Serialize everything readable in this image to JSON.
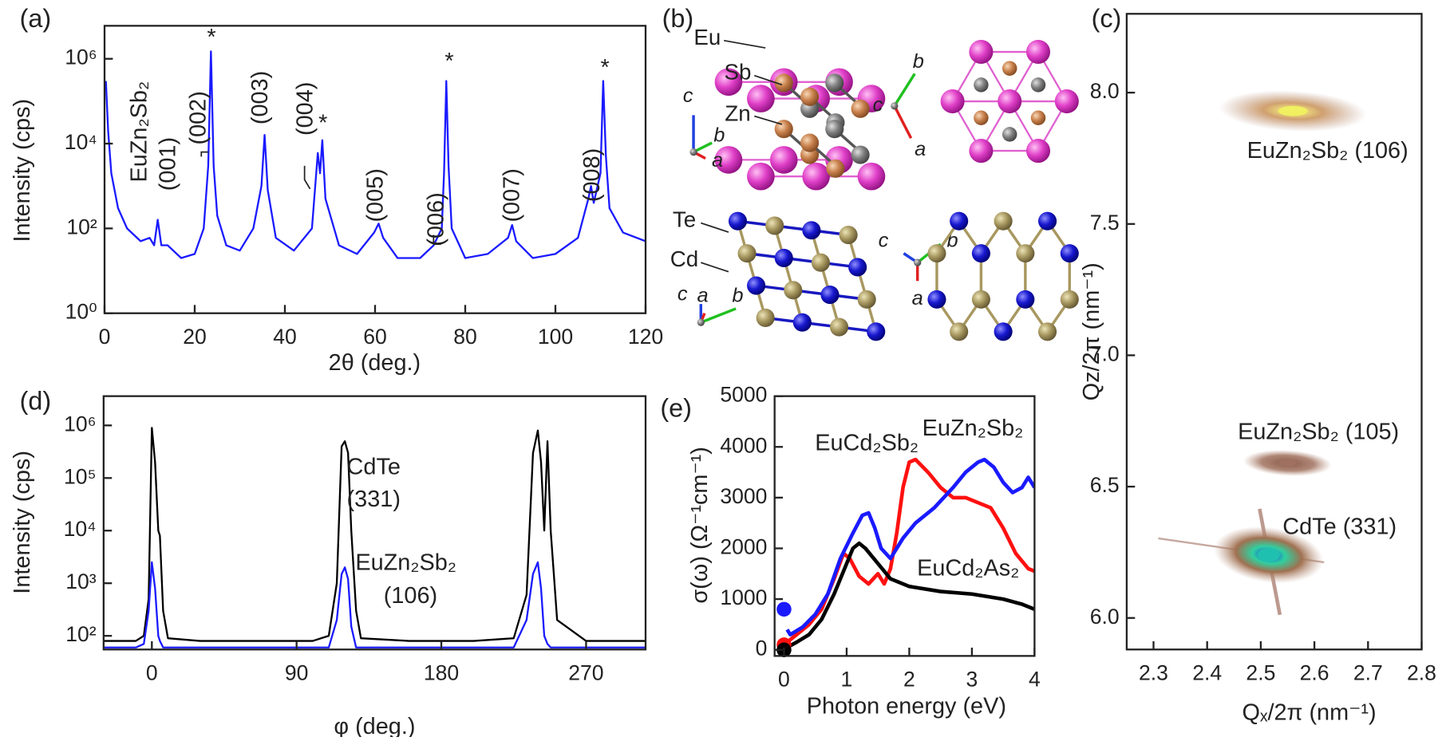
{
  "chart_data": [
    {
      "type": "line",
      "panel_label": "(a)",
      "x_label": "2θ (deg.)",
      "y_label": "Intensity (cps)",
      "log_y": true,
      "xlim": [
        0,
        120
      ],
      "xticks": [
        0,
        20,
        40,
        60,
        80,
        100,
        120
      ],
      "ylim": [
        1,
        6000000
      ],
      "yticks": [
        {
          "value": 1,
          "label": "10⁰"
        },
        {
          "value": 100,
          "label": "10²"
        },
        {
          "value": 10000,
          "label": "10⁴"
        },
        {
          "value": 1000000,
          "label": "10⁶"
        }
      ],
      "series": [
        {
          "color": "#1a1aff",
          "x": [
            0.3,
            0.8,
            1.5,
            3,
            5,
            8,
            10,
            11,
            11.8,
            12.6,
            14,
            17,
            20,
            22,
            23,
            23.6,
            24.2,
            25,
            27,
            30,
            33,
            34.8,
            35.5,
            36.2,
            38,
            42,
            46,
            47.3,
            47.8,
            48.3,
            49,
            52,
            56,
            59.8,
            60.8,
            61.8,
            65,
            70,
            73,
            74.8,
            75.3,
            75.8,
            76.3,
            77,
            80,
            85,
            89.5,
            90.4,
            91.3,
            95,
            100,
            105,
            107.3,
            107.9,
            108.5,
            110,
            110.6,
            111.2,
            112,
            115,
            120
          ],
          "values": [
            300000,
            20000,
            2000,
            300,
            100,
            50,
            60,
            40,
            160,
            40,
            40,
            20,
            25,
            100,
            3000,
            1500000,
            3000,
            200,
            40,
            30,
            100,
            1000,
            16000,
            800,
            60,
            30,
            100,
            6000,
            2000,
            12000,
            500,
            40,
            25,
            80,
            130,
            60,
            20,
            20,
            40,
            100,
            2000,
            300000,
            3000,
            100,
            20,
            25,
            60,
            120,
            50,
            20,
            25,
            60,
            500,
            1000,
            400,
            2000,
            300000,
            5000,
            300,
            80,
            50
          ]
        }
      ],
      "annotations": [
        "EuZn₂Sb₂",
        "(001)",
        "(002)",
        "(003)",
        "(004)",
        "(005)",
        "(006)",
        "(007)",
        "(008)",
        "*",
        "*",
        "*",
        "*"
      ]
    },
    {
      "type": "line",
      "panel_label": "(d)",
      "x_label": "φ (deg.)",
      "y_label": "Intensity (cps)",
      "log_y": true,
      "xlim": [
        -30,
        307
      ],
      "xticks": [
        0,
        90,
        180,
        270
      ],
      "ylim": [
        55,
        3600000
      ],
      "yticks": [
        {
          "value": 100,
          "label": "10²"
        },
        {
          "value": 1000,
          "label": "10³"
        },
        {
          "value": 10000,
          "label": "10⁴"
        },
        {
          "value": 100000,
          "label": "10⁵"
        },
        {
          "value": 1000000,
          "label": "10⁶"
        }
      ],
      "x": [
        -30,
        -10,
        -5,
        -2,
        0,
        2,
        4,
        5,
        7,
        10,
        30,
        60,
        100,
        110,
        115,
        118,
        120,
        122,
        124,
        127,
        130,
        160,
        200,
        225,
        233,
        237,
        240,
        242,
        244,
        246,
        248,
        252,
        270,
        307
      ],
      "series": [
        {
          "name": [
            "CdTe",
            "(331)"
          ],
          "color": "#000000",
          "values": [
            80,
            80,
            100,
            500,
            900000,
            200000,
            10000,
            8000,
            300,
            90,
            80,
            80,
            80,
            100,
            1000,
            400000,
            500000,
            300000,
            10000,
            300,
            90,
            80,
            80,
            90,
            600,
            300000,
            800000,
            200000,
            10000,
            500000,
            10000,
            200,
            80,
            80
          ]
        },
        {
          "name": [
            "EuZn₂Sb₂",
            "(106)"
          ],
          "color": "#1a1aff",
          "values": [
            60,
            60,
            70,
            300,
            2500,
            800,
            100,
            80,
            60,
            60,
            60,
            60,
            60,
            60,
            200,
            1500,
            2000,
            1200,
            150,
            60,
            60,
            60,
            60,
            60,
            200,
            1500,
            2500,
            800,
            100,
            70,
            60,
            60,
            60,
            60
          ]
        }
      ]
    },
    {
      "type": "line",
      "panel_label": "(e)",
      "x_label": "Photon energy (eV)",
      "y_label": "σ(ω) (Ω⁻¹cm⁻¹)",
      "log_y": false,
      "xlim": [
        -0.15,
        4
      ],
      "xticks": [
        0,
        1,
        2,
        3,
        4
      ],
      "ylim": [
        -120,
        5000
      ],
      "yticks": [
        0,
        1000,
        2000,
        3000,
        4000,
        5000
      ],
      "series": [
        {
          "name": "EuCd₂Sb₂",
          "color": "#ff1010",
          "dc_value": 100,
          "x": [
            0.05,
            0.2,
            0.4,
            0.6,
            0.8,
            0.95,
            1.05,
            1.2,
            1.35,
            1.5,
            1.6,
            1.7,
            1.8,
            1.9,
            2.0,
            2.1,
            2.3,
            2.5,
            2.7,
            2.9,
            3.1,
            3.3,
            3.5,
            3.7,
            3.9,
            4.0
          ],
          "values": [
            150,
            300,
            500,
            800,
            1400,
            1900,
            1800,
            1450,
            1300,
            1500,
            1300,
            1600,
            2300,
            3200,
            3700,
            3750,
            3500,
            3200,
            3000,
            3000,
            2900,
            2800,
            2400,
            1900,
            1600,
            1550
          ]
        },
        {
          "name": "EuZn₂Sb₂",
          "color": "#1a1aff",
          "dc_value": 800,
          "x": [
            0.05,
            0.1,
            0.3,
            0.5,
            0.7,
            0.9,
            1.1,
            1.25,
            1.35,
            1.45,
            1.55,
            1.7,
            1.9,
            2.1,
            2.4,
            2.7,
            2.9,
            3.1,
            3.2,
            3.35,
            3.5,
            3.65,
            3.8,
            3.9,
            4.0
          ],
          "values": [
            400,
            300,
            450,
            700,
            1100,
            1800,
            2300,
            2650,
            2700,
            2400,
            2000,
            1800,
            2200,
            2500,
            2800,
            3200,
            3500,
            3700,
            3750,
            3600,
            3300,
            3100,
            3200,
            3400,
            3200
          ]
        },
        {
          "name": "EuCd₂As₂",
          "color": "#000000",
          "dc_value": 0,
          "x": [
            0.05,
            0.2,
            0.4,
            0.6,
            0.8,
            1.0,
            1.1,
            1.2,
            1.3,
            1.5,
            1.7,
            2.0,
            2.5,
            3.0,
            3.5,
            3.8,
            4.0
          ],
          "values": [
            50,
            150,
            300,
            600,
            1100,
            1700,
            2000,
            2100,
            2000,
            1700,
            1400,
            1250,
            1150,
            1100,
            1000,
            900,
            800
          ]
        }
      ]
    },
    {
      "type": "scatter",
      "panel_label": "(c)",
      "x_label": "Qₓ/2π (nm⁻¹)",
      "y_label": "Qz/2π (nm⁻¹)",
      "xlim": [
        2.25,
        2.8
      ],
      "xticks": [
        2.3,
        2.4,
        2.5,
        2.6,
        2.7,
        2.8
      ],
      "ylim": [
        5.88,
        8.3
      ],
      "yticks": [
        {
          "value": 6,
          "label": "6.0"
        },
        6.5,
        {
          "value": 7,
          "label": "7.0"
        },
        7.5,
        {
          "value": 8,
          "label": "8.0"
        }
      ],
      "series": [
        {
          "x": [
            2.56,
            2.55,
            2.515
          ],
          "values": [
            7.93,
            6.59,
            6.24
          ],
          "colors": [
            "#f0f060",
            "#a07060",
            "#20c0b0"
          ]
        }
      ],
      "annotations": [
        "EuZn₂Sb₂ (106)",
        "EuZn₂Sb₂ (105)",
        "CdTe (331)"
      ]
    }
  ],
  "structure": {
    "panel_label": "(b)",
    "atoms": {
      "eu": "Eu",
      "sb": "Sb",
      "zn": "Zn",
      "te": "Te",
      "cd": "Cd"
    },
    "axes": {
      "a": "a",
      "b": "b",
      "c": "c"
    }
  }
}
